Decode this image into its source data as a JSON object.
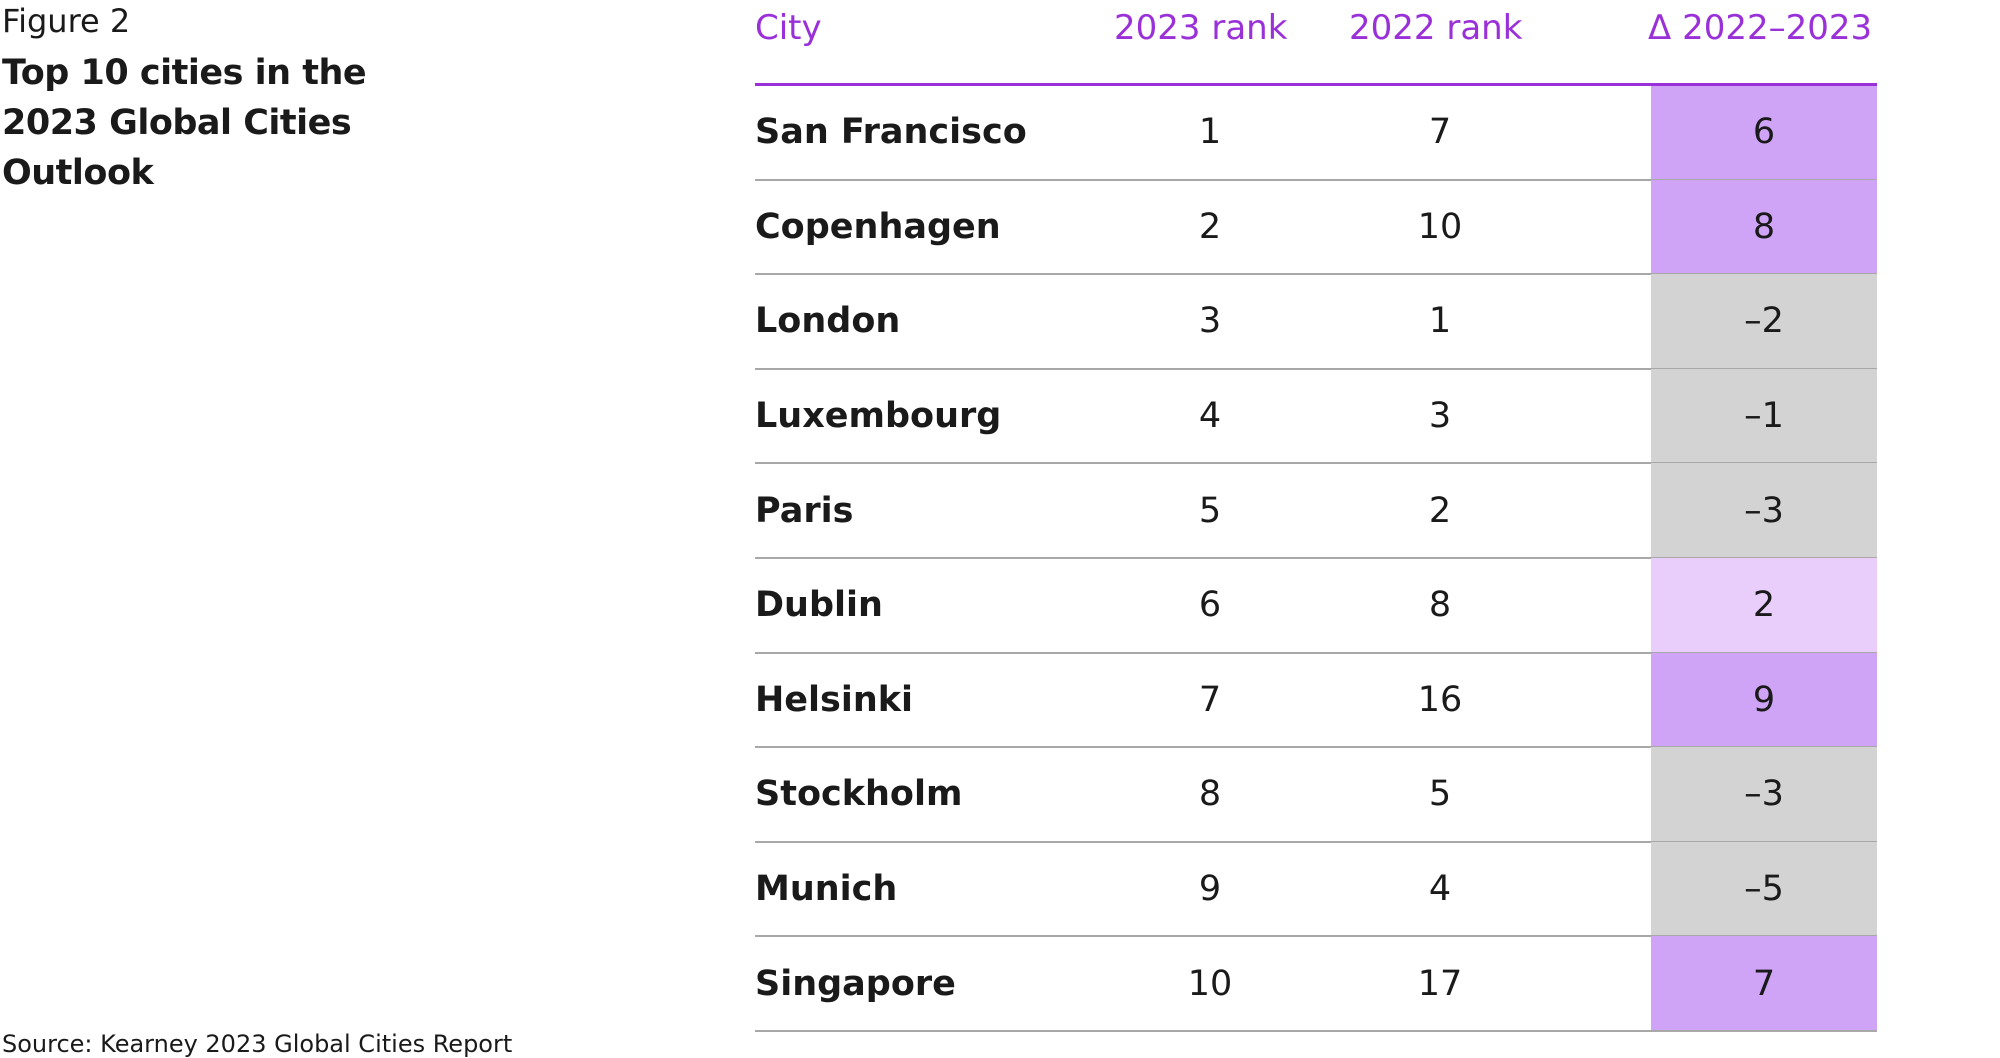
{
  "figure_label": "Figure 2",
  "title": "Top 10 cities in the 2023 Global Cities Outlook",
  "table": {
    "columns": [
      "City",
      "2023 rank",
      "2022 rank",
      "Δ 2022–2023"
    ],
    "header_color": "#9a30d8",
    "rows": [
      {
        "city": "San Francisco",
        "rank_2023": 1,
        "rank_2022": 7,
        "delta": "6",
        "color": "#cfa3f5"
      },
      {
        "city": "Copenhagen",
        "rank_2023": 2,
        "rank_2022": 10,
        "delta": "8",
        "color": "#cfa3f5"
      },
      {
        "city": "London",
        "rank_2023": 3,
        "rank_2022": 1,
        "delta": "–2",
        "color": "#d3d3d3"
      },
      {
        "city": "Luxembourg",
        "rank_2023": 4,
        "rank_2022": 3,
        "delta": "–1",
        "color": "#d3d3d3"
      },
      {
        "city": "Paris",
        "rank_2023": 5,
        "rank_2022": 2,
        "delta": "–3",
        "color": "#d3d3d3"
      },
      {
        "city": "Dublin",
        "rank_2023": 6,
        "rank_2022": 8,
        "delta": "2",
        "color": "#e9cefc"
      },
      {
        "city": "Helsinki",
        "rank_2023": 7,
        "rank_2022": 16,
        "delta": "9",
        "color": "#cfa3f5"
      },
      {
        "city": "Stockholm",
        "rank_2023": 8,
        "rank_2022": 5,
        "delta": "–3",
        "color": "#d3d3d3"
      },
      {
        "city": "Munich",
        "rank_2023": 9,
        "rank_2022": 4,
        "delta": "–5",
        "color": "#d3d3d3"
      },
      {
        "city": "Singapore",
        "rank_2023": 10,
        "rank_2022": 17,
        "delta": "7",
        "color": "#cfa3f5"
      }
    ]
  },
  "source": "Source: Kearney 2023 Global Cities Report"
}
